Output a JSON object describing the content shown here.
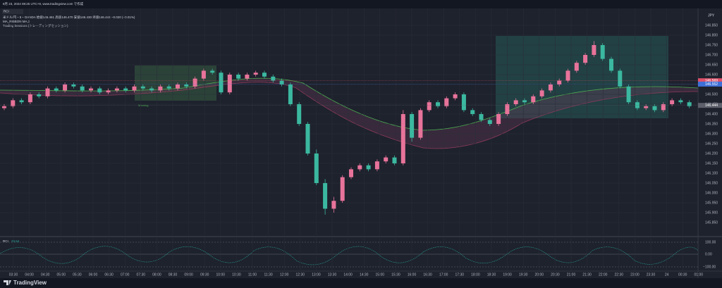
{
  "header": {
    "timestamp": "8月 23, 2024 08:25 UTC+9, www.tradingview.com で作成",
    "top_badge": "RCI",
    "symbol_line": "米ドル/円・5・OANDA 始値146.461 高値146.470 安値146.430 終値146.444 −0.020 (−0.01%)",
    "indicator_1": "MA_RIBBON MA,3",
    "indicator_2": "Trading Sessions (トレーディングセッション)"
  },
  "chart": {
    "currency": "JPY",
    "session_label": "Morning",
    "candles": [
      [
        146.43,
        146.45,
        146.42,
        146.44
      ],
      [
        146.44,
        146.48,
        146.43,
        146.47
      ],
      [
        146.47,
        146.48,
        146.45,
        146.46
      ],
      [
        146.46,
        146.51,
        146.45,
        146.5
      ],
      [
        146.5,
        146.51,
        146.48,
        146.49
      ],
      [
        146.49,
        146.54,
        146.48,
        146.53
      ],
      [
        146.53,
        146.54,
        146.51,
        146.52
      ],
      [
        146.52,
        146.56,
        146.51,
        146.55
      ],
      [
        146.55,
        146.56,
        146.53,
        146.54
      ],
      [
        146.54,
        146.55,
        146.51,
        146.52
      ],
      [
        146.52,
        146.54,
        146.51,
        146.53
      ],
      [
        146.53,
        146.54,
        146.5,
        146.51
      ],
      [
        146.51,
        146.53,
        146.5,
        146.52
      ],
      [
        146.52,
        146.54,
        146.51,
        146.53
      ],
      [
        146.53,
        146.54,
        146.51,
        146.52
      ],
      [
        146.52,
        146.55,
        146.51,
        146.54
      ],
      [
        146.54,
        146.55,
        146.52,
        146.53
      ],
      [
        146.53,
        146.54,
        146.51,
        146.52
      ],
      [
        146.52,
        146.55,
        146.51,
        146.54
      ],
      [
        146.54,
        146.55,
        146.52,
        146.53
      ],
      [
        146.53,
        146.56,
        146.52,
        146.55
      ],
      [
        146.55,
        146.56,
        146.53,
        146.54
      ],
      [
        146.54,
        146.59,
        146.53,
        146.58
      ],
      [
        146.58,
        146.63,
        146.57,
        146.62
      ],
      [
        146.62,
        146.63,
        146.6,
        146.61
      ],
      [
        146.61,
        146.62,
        146.5,
        146.51
      ],
      [
        146.51,
        146.61,
        146.5,
        146.6
      ],
      [
        146.6,
        146.61,
        146.57,
        146.58
      ],
      [
        146.58,
        146.61,
        146.57,
        146.6
      ],
      [
        146.6,
        146.62,
        146.59,
        146.61
      ],
      [
        146.61,
        146.62,
        146.58,
        146.59
      ],
      [
        146.59,
        146.6,
        146.56,
        146.57
      ],
      [
        146.57,
        146.58,
        146.54,
        146.55
      ],
      [
        146.55,
        146.56,
        146.44,
        146.45
      ],
      [
        146.45,
        146.46,
        146.34,
        146.35
      ],
      [
        146.35,
        146.36,
        146.19,
        146.2
      ],
      [
        146.2,
        146.22,
        146.04,
        146.05
      ],
      [
        146.05,
        146.07,
        145.89,
        145.92
      ],
      [
        145.92,
        145.98,
        145.9,
        145.96
      ],
      [
        145.96,
        146.09,
        145.95,
        146.08
      ],
      [
        146.08,
        146.13,
        146.07,
        146.12
      ],
      [
        146.12,
        146.15,
        146.11,
        146.14
      ],
      [
        146.14,
        146.15,
        146.11,
        146.12
      ],
      [
        146.12,
        146.17,
        146.11,
        146.16
      ],
      [
        146.16,
        146.19,
        146.15,
        146.18
      ],
      [
        146.18,
        146.19,
        146.14,
        146.15
      ],
      [
        146.15,
        146.42,
        146.14,
        146.4
      ],
      [
        146.4,
        146.41,
        146.26,
        146.28
      ],
      [
        146.28,
        146.43,
        146.27,
        146.42
      ],
      [
        146.42,
        146.47,
        146.41,
        146.46
      ],
      [
        146.46,
        146.47,
        146.43,
        146.44
      ],
      [
        146.44,
        146.49,
        146.43,
        146.48
      ],
      [
        146.48,
        146.51,
        146.47,
        146.5
      ],
      [
        146.5,
        146.51,
        146.41,
        146.42
      ],
      [
        146.42,
        146.43,
        146.39,
        146.4
      ],
      [
        146.4,
        146.41,
        146.36,
        146.37
      ],
      [
        146.37,
        146.38,
        146.34,
        146.35
      ],
      [
        146.35,
        146.41,
        146.34,
        146.4
      ],
      [
        146.4,
        146.46,
        146.39,
        146.45
      ],
      [
        146.45,
        146.48,
        146.44,
        146.47
      ],
      [
        146.47,
        146.48,
        146.45,
        146.46
      ],
      [
        146.46,
        146.5,
        146.45,
        146.49
      ],
      [
        146.49,
        146.53,
        146.48,
        146.52
      ],
      [
        146.52,
        146.56,
        146.51,
        146.55
      ],
      [
        146.55,
        146.58,
        146.54,
        146.57
      ],
      [
        146.57,
        146.63,
        146.56,
        146.62
      ],
      [
        146.62,
        146.67,
        146.61,
        146.66
      ],
      [
        146.66,
        146.71,
        146.65,
        146.7
      ],
      [
        146.7,
        146.77,
        146.69,
        146.75
      ],
      [
        146.75,
        146.76,
        146.67,
        146.68
      ],
      [
        146.68,
        146.69,
        146.61,
        146.62
      ],
      [
        146.62,
        146.63,
        146.53,
        146.54
      ],
      [
        146.54,
        146.55,
        146.45,
        146.46
      ],
      [
        146.46,
        146.47,
        146.42,
        146.43
      ],
      [
        146.43,
        146.45,
        146.42,
        146.44
      ],
      [
        146.44,
        146.45,
        146.41,
        146.42
      ],
      [
        146.42,
        146.46,
        146.41,
        146.45
      ],
      [
        146.45,
        146.48,
        146.44,
        146.47
      ],
      [
        146.47,
        146.48,
        146.45,
        146.46
      ],
      [
        146.46,
        146.47,
        146.43,
        146.44
      ]
    ],
    "up_color": "#e8739a",
    "down_color": "#3bb8a0",
    "price_ticks": [
      {
        "value": 145.85,
        "label": "145.850"
      },
      {
        "value": 145.9,
        "label": "145.900"
      },
      {
        "value": 145.95,
        "label": "145.950"
      },
      {
        "value": 146,
        "label": "146.000"
      },
      {
        "value": 146.05,
        "label": "146.050"
      },
      {
        "value": 146.1,
        "label": "146.100"
      },
      {
        "value": 146.15,
        "label": "146.150"
      },
      {
        "value": 146.2,
        "label": "146.200"
      },
      {
        "value": 146.25,
        "label": "146.250"
      },
      {
        "value": 146.3,
        "label": "146.300"
      },
      {
        "value": 146.35,
        "label": "146.350"
      },
      {
        "value": 146.4,
        "label": "146.400"
      },
      {
        "value": 146.45,
        "label": "146.450"
      },
      {
        "value": 146.5,
        "label": "146.500"
      },
      {
        "value": 146.55,
        "label": "146.550"
      },
      {
        "value": 146.6,
        "label": "146.600"
      },
      {
        "value": 146.65,
        "label": "146.650"
      },
      {
        "value": 146.7,
        "label": "146.700"
      },
      {
        "value": 146.75,
        "label": "146.750"
      },
      {
        "value": 146.8,
        "label": "146.800"
      },
      {
        "value": 146.85,
        "label": "146.850"
      }
    ],
    "price_tags": [
      {
        "value": 146.569,
        "color": "#e0506a"
      },
      {
        "value": 146.552,
        "color": "#3f6fd8"
      },
      {
        "value": 146.444,
        "color": "#5d606b"
      }
    ],
    "time_labels": [
      "03:30",
      "04:00",
      "04:30",
      "05:00",
      "05:30",
      "06:00",
      "06:30",
      "07:00",
      "07:30",
      "08:00",
      "08:30",
      "09:00",
      "09:30",
      "10:00",
      "10:30",
      "11:00",
      "11:30",
      "12:00",
      "12:30",
      "13:00",
      "13:30",
      "14:00",
      "14:30",
      "15:00",
      "15:30",
      "16:00",
      "16:30",
      "17:00",
      "17:30",
      "18:00",
      "18:30",
      "19:00",
      "19:30",
      "20:00",
      "20:30",
      "21:00",
      "21:30",
      "22:00",
      "22:30",
      "23:00",
      "23:30",
      "24",
      "00:30",
      "01:00"
    ]
  },
  "oscillator": {
    "label": "RCI",
    "value": "29.54",
    "ticks": [
      "100.00",
      "0.00",
      "−100.00"
    ]
  },
  "footer": {
    "brand": "TradingView"
  }
}
